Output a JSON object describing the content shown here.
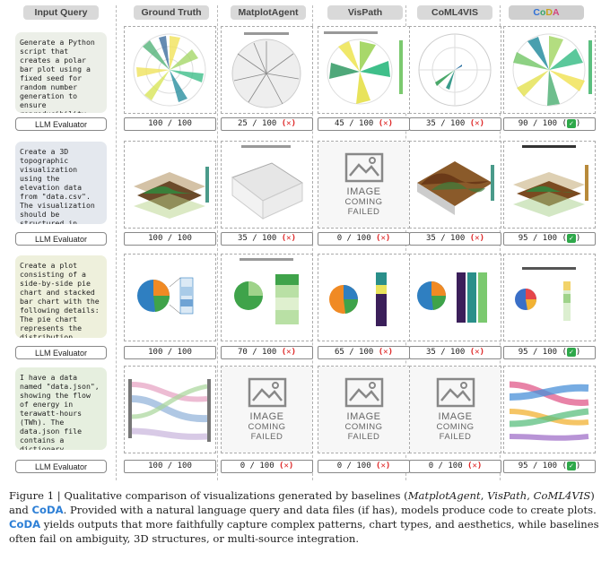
{
  "headers": {
    "input_query": "Input Query",
    "ground_truth": "Ground Truth",
    "matplotagent": "MatplotAgent",
    "vispath": "VisPath",
    "coml4vis": "CoML4VIS",
    "coda": [
      "C",
      "o",
      "D",
      "A"
    ]
  },
  "queries": [
    "Generate a Python script that creates a polar bar plot using a fixed seed for random number generation to ensure reproducibility...",
    "Create a 3D topographic visualization using the elevation data from \"data.csv\". The visualization should be structured in...",
    "Create a plot consisting of a side-by-side pie chart and stacked bar chart with the following details: The pie chart represents the distribution...",
    "I have a data named \"data.json\", showing the flow of energy in terawatt-hours (TWh). The data.json file contains a dictionary..."
  ],
  "evaluator_label": "LLM Evaluator",
  "failed_text": {
    "line1": "IMAGE",
    "line2": "COMING",
    "line3": "FAILED"
  },
  "scores": [
    [
      "100 / 100",
      "25 / 100",
      "45 / 100",
      "35 / 100",
      "90 / 100"
    ],
    [
      "100 / 100",
      "35 / 100",
      "0 / 100",
      "35 / 100",
      "95 / 100"
    ],
    [
      "100 / 100",
      "70 / 100",
      "65 / 100",
      "35 / 100",
      "95 / 100"
    ],
    [
      "100 / 100",
      "0 / 100",
      "0 / 100",
      "0 / 100",
      "95 / 100"
    ]
  ],
  "marks": [
    [
      "",
      "x",
      "x",
      "x",
      "ok"
    ],
    [
      "",
      "x",
      "x",
      "x",
      "ok"
    ],
    [
      "",
      "x",
      "x",
      "x",
      "ok"
    ],
    [
      "",
      "x",
      "x",
      "x",
      "ok"
    ]
  ],
  "failed": [
    [
      false,
      false,
      false,
      false,
      false
    ],
    [
      false,
      false,
      true,
      false,
      false
    ],
    [
      false,
      false,
      false,
      false,
      false
    ],
    [
      false,
      true,
      true,
      true,
      false
    ]
  ],
  "caption": {
    "label": "Figure 1 | Qualitative comparison of visualizations generated by baselines (",
    "b1": "MatplotAgent",
    "s1": ", ",
    "b2": "VisPath",
    "s2": ", ",
    "b3": "CoML4VIS",
    "s3": ") and ",
    "coda1": "CoDA",
    "s4": ". Provided with a natural language query and data files (if has), models produce code to create plots. ",
    "coda2": "CoDA",
    "s5": " yields outputs that more faithfully capture complex patterns, chart types, and aesthetics, while baselines often fail on ambiguity, 3D structures, or multi-source integration."
  }
}
